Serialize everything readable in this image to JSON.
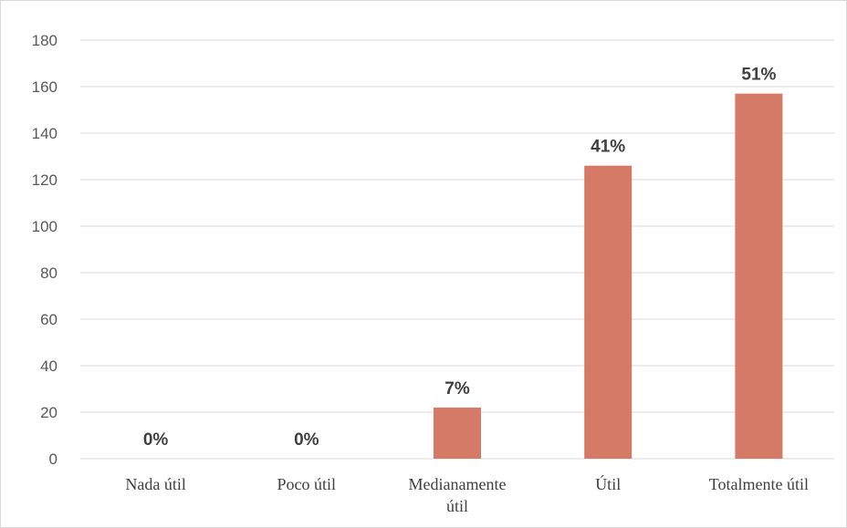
{
  "chart_data": {
    "type": "bar",
    "categories": [
      "Nada útil",
      "Poco útil",
      "Medianamente útil",
      "Útil",
      "Totalmente útil"
    ],
    "category_lines": [
      [
        "Nada útil"
      ],
      [
        "Poco útil"
      ],
      [
        "Medianamente",
        "útil"
      ],
      [
        "Útil"
      ],
      [
        "Totalmente útil"
      ]
    ],
    "values": [
      0,
      0,
      22,
      126,
      157
    ],
    "data_labels": [
      "0%",
      "0%",
      "7%",
      "41%",
      "51%"
    ],
    "title": "",
    "xlabel": "",
    "ylabel": "",
    "ylim": [
      0,
      180
    ],
    "yticks": [
      0,
      20,
      40,
      60,
      80,
      100,
      120,
      140,
      160,
      180
    ],
    "grid": true,
    "legend": "none",
    "bar_color": "#d47a66",
    "grid_color": "#d9d9d9"
  }
}
